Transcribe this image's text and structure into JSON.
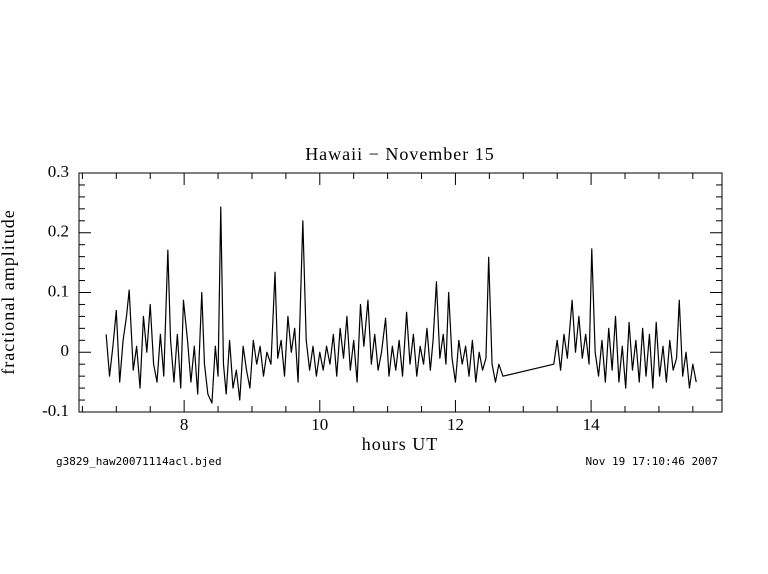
{
  "chart_data": {
    "type": "line",
    "title": "Hawaii − November 15",
    "xlabel": "hours UT",
    "ylabel": "fractional amplitude",
    "footer_left": "g3829_haw20071114acl.bjed",
    "footer_right": "Nov 19 17:10:46 2007",
    "xlim": [
      6.45,
      15.93
    ],
    "ylim": [
      -0.1,
      0.3
    ],
    "xticks": [
      8,
      10,
      12,
      14
    ],
    "xminorticks": [
      6.5,
      7,
      7.5,
      8.5,
      9,
      9.5,
      10.5,
      11,
      11.5,
      12.5,
      13,
      13.5,
      14.5,
      15,
      15.5
    ],
    "yticks": [
      -0.1,
      0,
      0.1,
      0.2,
      0.3
    ],
    "yminorticks": [
      -0.08,
      -0.06,
      -0.04,
      -0.02,
      0.02,
      0.04,
      0.06,
      0.08,
      0.12,
      0.14,
      0.16,
      0.18,
      0.22,
      0.24,
      0.26,
      0.28
    ],
    "series": [
      {
        "color": "#000000",
        "x": [
          6.85,
          6.9,
          6.95,
          7.0,
          7.05,
          7.1,
          7.15,
          7.19,
          7.25,
          7.3,
          7.35,
          7.4,
          7.45,
          7.5,
          7.55,
          7.6,
          7.65,
          7.7,
          7.76,
          7.8,
          7.85,
          7.9,
          7.95,
          7.99,
          8.05,
          8.1,
          8.15,
          8.2,
          8.26,
          8.3,
          8.35,
          8.41,
          8.46,
          8.5,
          8.54,
          8.58,
          8.62,
          8.67,
          8.72,
          8.77,
          8.82,
          8.87,
          8.92,
          8.97,
          9.02,
          9.07,
          9.12,
          9.17,
          9.22,
          9.28,
          9.34,
          9.38,
          9.43,
          9.48,
          9.53,
          9.58,
          9.63,
          9.68,
          9.75,
          9.8,
          9.85,
          9.9,
          9.95,
          10.0,
          10.05,
          10.1,
          10.15,
          10.2,
          10.25,
          10.3,
          10.35,
          10.4,
          10.45,
          10.5,
          10.55,
          10.6,
          10.65,
          10.71,
          10.76,
          10.81,
          10.86,
          10.91,
          10.97,
          11.02,
          11.07,
          11.12,
          11.17,
          11.22,
          11.28,
          11.33,
          11.38,
          11.43,
          11.48,
          11.53,
          11.58,
          11.63,
          11.67,
          11.72,
          11.77,
          11.82,
          11.86,
          11.9,
          11.95,
          12.0,
          12.05,
          12.1,
          12.15,
          12.2,
          12.25,
          12.3,
          12.35,
          12.4,
          12.45,
          12.49,
          12.54,
          12.59,
          12.64,
          12.7,
          13.45,
          13.5,
          13.55,
          13.6,
          13.65,
          13.72,
          13.77,
          13.82,
          13.87,
          13.92,
          13.97,
          14.01,
          14.06,
          14.11,
          14.16,
          14.21,
          14.26,
          14.31,
          14.36,
          14.41,
          14.46,
          14.51,
          14.56,
          14.61,
          14.66,
          14.71,
          14.76,
          14.81,
          14.86,
          14.91,
          14.96,
          15.01,
          15.06,
          15.11,
          15.16,
          15.21,
          15.26,
          15.3,
          15.35,
          15.4,
          15.45,
          15.5,
          15.55
        ],
        "values": [
          0.03,
          -0.04,
          0.01,
          0.07,
          -0.05,
          0.02,
          0.06,
          0.104,
          -0.03,
          0.01,
          -0.06,
          0.06,
          0.0,
          0.08,
          -0.02,
          -0.05,
          0.03,
          -0.04,
          0.171,
          0.02,
          -0.05,
          0.03,
          -0.06,
          0.087,
          0.02,
          -0.05,
          0.01,
          -0.07,
          0.1,
          -0.02,
          -0.07,
          -0.085,
          0.01,
          -0.04,
          0.243,
          -0.02,
          -0.07,
          0.02,
          -0.06,
          -0.03,
          -0.08,
          0.01,
          -0.03,
          -0.06,
          0.02,
          -0.02,
          0.01,
          -0.04,
          0.0,
          -0.02,
          0.134,
          -0.01,
          0.02,
          -0.04,
          0.06,
          0.0,
          0.04,
          -0.05,
          0.22,
          0.02,
          -0.03,
          0.01,
          -0.04,
          0.0,
          -0.03,
          0.01,
          -0.02,
          0.03,
          -0.04,
          0.04,
          -0.01,
          0.06,
          -0.03,
          0.02,
          -0.05,
          0.08,
          0.01,
          0.087,
          -0.02,
          0.03,
          -0.03,
          0.0,
          0.057,
          -0.04,
          0.01,
          -0.03,
          0.02,
          -0.04,
          0.067,
          -0.02,
          0.03,
          -0.04,
          0.01,
          -0.02,
          0.04,
          -0.03,
          0.02,
          0.118,
          -0.01,
          0.03,
          -0.02,
          0.1,
          -0.01,
          -0.05,
          0.02,
          -0.02,
          0.01,
          -0.04,
          0.02,
          -0.05,
          0.0,
          -0.03,
          -0.01,
          0.159,
          -0.02,
          -0.05,
          -0.02,
          -0.04,
          -0.02,
          0.02,
          -0.03,
          0.03,
          -0.01,
          0.087,
          0.0,
          0.06,
          -0.01,
          0.03,
          -0.02,
          0.173,
          0.0,
          -0.04,
          0.02,
          -0.05,
          0.04,
          -0.03,
          0.06,
          -0.05,
          0.01,
          -0.06,
          0.05,
          -0.03,
          0.02,
          -0.05,
          0.04,
          -0.04,
          0.03,
          -0.06,
          0.05,
          -0.04,
          0.01,
          -0.05,
          0.02,
          -0.03,
          -0.01,
          0.087,
          -0.04,
          0.0,
          -0.06,
          -0.02,
          -0.05
        ]
      }
    ]
  }
}
